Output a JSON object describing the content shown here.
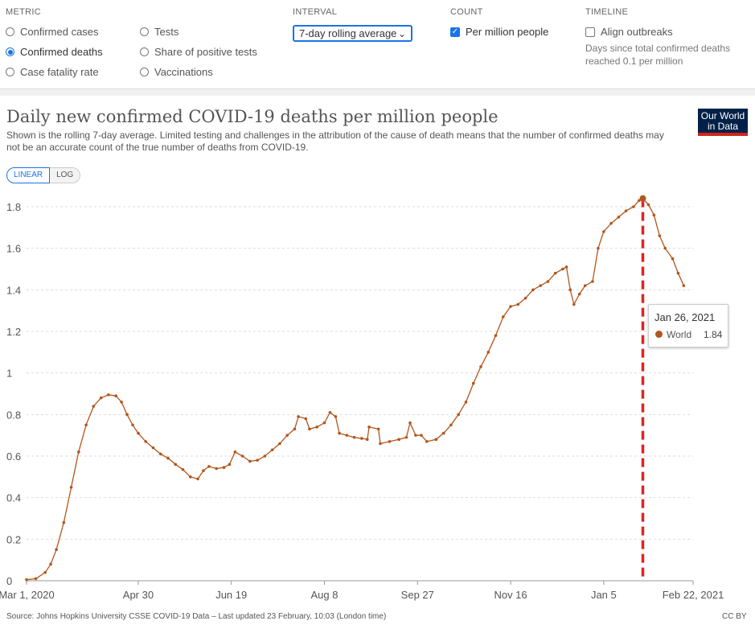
{
  "controls": {
    "metric": {
      "heading": "METRIC",
      "options": [
        {
          "label": "Confirmed cases",
          "selected": false
        },
        {
          "label": "Tests",
          "selected": false
        },
        {
          "label": "Confirmed deaths",
          "selected": true
        },
        {
          "label": "Share of positive tests",
          "selected": false
        },
        {
          "label": "Case fatality rate",
          "selected": false
        },
        {
          "label": "Vaccinations",
          "selected": false
        }
      ]
    },
    "interval": {
      "heading": "INTERVAL",
      "selected": "7-day rolling average"
    },
    "count": {
      "heading": "COUNT",
      "label": "Per million people",
      "checked": true
    },
    "timeline": {
      "heading": "TIMELINE",
      "label": "Align outbreaks",
      "checked": false,
      "note": "Days since total confirmed deaths reached 0.1 per million"
    }
  },
  "title": "Daily new confirmed COVID-19 deaths per million people",
  "subtitle": "Shown is the rolling 7-day average. Limited testing and challenges in the attribution of the cause of death means that the number of confirmed deaths may not be an accurate count of the true number of deaths from COVID-19.",
  "logo": {
    "line1": "Our World",
    "line2": "in Data"
  },
  "scale_toggle": {
    "linear": "LINEAR",
    "log": "LOG",
    "active": "LINEAR"
  },
  "tooltip": {
    "date": "Jan 26, 2021",
    "entity": "World",
    "value": "1.84"
  },
  "source": "Source: Johns Hopkins University CSSE COVID-19 Data – Last updated 23 February, 10:03 (London time)",
  "license": "CC BY",
  "colors": {
    "series": "#b1561d",
    "accent": "#1a73e8",
    "highlight": "#e3231f",
    "logo_bg": "#002147",
    "logo_bar": "#ce261e"
  },
  "chart_data": {
    "type": "line",
    "title": "Daily new confirmed COVID-19 deaths per million people",
    "xlabel": "",
    "ylabel": "",
    "x_unit": "days since Mar 1, 2020",
    "xlim": [
      0,
      358
    ],
    "ylim": [
      0,
      1.8
    ],
    "yticks": [
      0,
      0.2,
      0.4,
      0.6,
      0.8,
      1,
      1.2,
      1.4,
      1.6,
      1.8
    ],
    "xticks": [
      {
        "day": 0,
        "label": "Mar 1, 2020"
      },
      {
        "day": 60,
        "label": "Apr 30"
      },
      {
        "day": 110,
        "label": "Jun 19"
      },
      {
        "day": 160,
        "label": "Aug 8"
      },
      {
        "day": 210,
        "label": "Sep 27"
      },
      {
        "day": 260,
        "label": "Nov 16"
      },
      {
        "day": 310,
        "label": "Jan 5"
      },
      {
        "day": 358,
        "label": "Feb 22, 2021"
      }
    ],
    "grid": true,
    "highlight": {
      "day": 331,
      "date": "Jan 26, 2021",
      "value": 1.84
    },
    "series": [
      {
        "name": "World",
        "points": [
          [
            0,
            0.005
          ],
          [
            5,
            0.01
          ],
          [
            10,
            0.04
          ],
          [
            13,
            0.08
          ],
          [
            16,
            0.15
          ],
          [
            20,
            0.28
          ],
          [
            24,
            0.45
          ],
          [
            28,
            0.62
          ],
          [
            32,
            0.75
          ],
          [
            36,
            0.84
          ],
          [
            40,
            0.88
          ],
          [
            44,
            0.895
          ],
          [
            48,
            0.89
          ],
          [
            51,
            0.86
          ],
          [
            54,
            0.8
          ],
          [
            57,
            0.75
          ],
          [
            60,
            0.71
          ],
          [
            64,
            0.67
          ],
          [
            68,
            0.64
          ],
          [
            72,
            0.61
          ],
          [
            76,
            0.59
          ],
          [
            80,
            0.56
          ],
          [
            84,
            0.535
          ],
          [
            88,
            0.5
          ],
          [
            92,
            0.49
          ],
          [
            95,
            0.53
          ],
          [
            98,
            0.55
          ],
          [
            102,
            0.54
          ],
          [
            106,
            0.545
          ],
          [
            109,
            0.56
          ],
          [
            112,
            0.62
          ],
          [
            116,
            0.6
          ],
          [
            120,
            0.575
          ],
          [
            124,
            0.58
          ],
          [
            128,
            0.6
          ],
          [
            132,
            0.63
          ],
          [
            136,
            0.66
          ],
          [
            140,
            0.7
          ],
          [
            144,
            0.73
          ],
          [
            146,
            0.79
          ],
          [
            150,
            0.78
          ],
          [
            152,
            0.73
          ],
          [
            156,
            0.74
          ],
          [
            160,
            0.76
          ],
          [
            163,
            0.81
          ],
          [
            166,
            0.79
          ],
          [
            168,
            0.71
          ],
          [
            172,
            0.7
          ],
          [
            176,
            0.69
          ],
          [
            180,
            0.685
          ],
          [
            183,
            0.68
          ],
          [
            184,
            0.74
          ],
          [
            189,
            0.73
          ],
          [
            190,
            0.66
          ],
          [
            195,
            0.67
          ],
          [
            200,
            0.68
          ],
          [
            204,
            0.69
          ],
          [
            206,
            0.76
          ],
          [
            209,
            0.7
          ],
          [
            212,
            0.7
          ],
          [
            215,
            0.67
          ],
          [
            220,
            0.68
          ],
          [
            224,
            0.71
          ],
          [
            228,
            0.75
          ],
          [
            232,
            0.8
          ],
          [
            236,
            0.86
          ],
          [
            240,
            0.95
          ],
          [
            244,
            1.03
          ],
          [
            248,
            1.1
          ],
          [
            252,
            1.18
          ],
          [
            256,
            1.27
          ],
          [
            260,
            1.32
          ],
          [
            264,
            1.33
          ],
          [
            268,
            1.36
          ],
          [
            272,
            1.4
          ],
          [
            276,
            1.42
          ],
          [
            280,
            1.44
          ],
          [
            284,
            1.48
          ],
          [
            288,
            1.5
          ],
          [
            290,
            1.51
          ],
          [
            292,
            1.4
          ],
          [
            294,
            1.33
          ],
          [
            297,
            1.38
          ],
          [
            300,
            1.42
          ],
          [
            304,
            1.44
          ],
          [
            307,
            1.6
          ],
          [
            310,
            1.68
          ],
          [
            314,
            1.72
          ],
          [
            318,
            1.75
          ],
          [
            322,
            1.78
          ],
          [
            326,
            1.8
          ],
          [
            329,
            1.83
          ],
          [
            331,
            1.84
          ],
          [
            334,
            1.81
          ],
          [
            337,
            1.76
          ],
          [
            340,
            1.66
          ],
          [
            343,
            1.6
          ],
          [
            347,
            1.55
          ],
          [
            350,
            1.48
          ],
          [
            353,
            1.42
          ]
        ]
      }
    ]
  }
}
